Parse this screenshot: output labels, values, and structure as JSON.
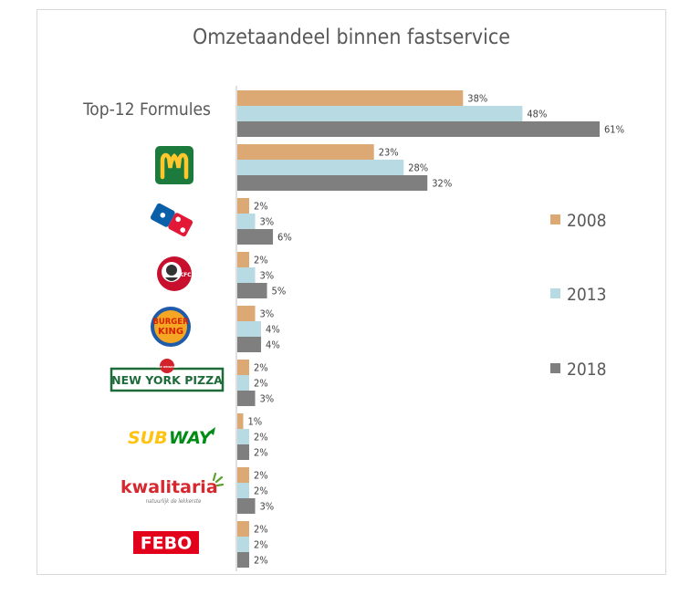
{
  "chart_data": {
    "type": "bar",
    "orientation": "horizontal",
    "title": "Omzetaandeel binnen fastservice",
    "categories": [
      "Top-12 Formules",
      "McDonald's",
      "Domino's Pizza",
      "KFC",
      "Burger King",
      "New York Pizza",
      "Subway",
      "Kwalitaria",
      "FEBO"
    ],
    "series": [
      {
        "name": "2008",
        "color": "#dca873",
        "values": [
          38,
          23,
          2,
          2,
          3,
          2,
          1,
          2,
          2
        ]
      },
      {
        "name": "2013",
        "color": "#b8dae3",
        "values": [
          48,
          28,
          3,
          3,
          4,
          2,
          2,
          2,
          2
        ]
      },
      {
        "name": "2018",
        "color": "#7f7f7f",
        "values": [
          61,
          32,
          6,
          5,
          4,
          3,
          2,
          3,
          2
        ]
      }
    ],
    "value_suffix": "%",
    "xlim": [
      0,
      61
    ],
    "grid": false,
    "legend_position": "right"
  },
  "logos": {
    "mcdonalds": {
      "icon": "mcdonalds-logo-icon",
      "bg": "#1d7a3d",
      "fg": "#ffc72c"
    },
    "dominos": {
      "icon": "dominos-logo-icon",
      "red": "#e31837",
      "blue": "#0b5ea8",
      "text": "Domino's Pizza"
    },
    "kfc": {
      "icon": "kfc-logo-icon",
      "red": "#c8102e",
      "text": "KFC"
    },
    "burgerking": {
      "icon": "burger-king-logo-icon",
      "red": "#d62300",
      "bun": "#f5a623",
      "blue": "#1f5ba8",
      "line1": "BURGER",
      "line2": "KING"
    },
    "nyp": {
      "icon": "new-york-pizza-logo-icon",
      "green": "#1e6b3a",
      "red": "#d2232a",
      "text": "NEW YORK PIZZA",
      "tag": "THE ORIGINAL"
    },
    "subway": {
      "icon": "subway-logo-icon",
      "yellow": "#ffc20e",
      "green": "#008c15",
      "text1": "SUB",
      "text2": "WAY"
    },
    "kwalitaria": {
      "icon": "kwalitaria-logo-icon",
      "red": "#d7282f",
      "green": "#5aa02c",
      "text": "kwalitaria",
      "tagline": "natuurlijk de lekkerste"
    },
    "febo": {
      "icon": "febo-logo-icon",
      "red": "#e2001a",
      "text": "FEBO"
    }
  }
}
